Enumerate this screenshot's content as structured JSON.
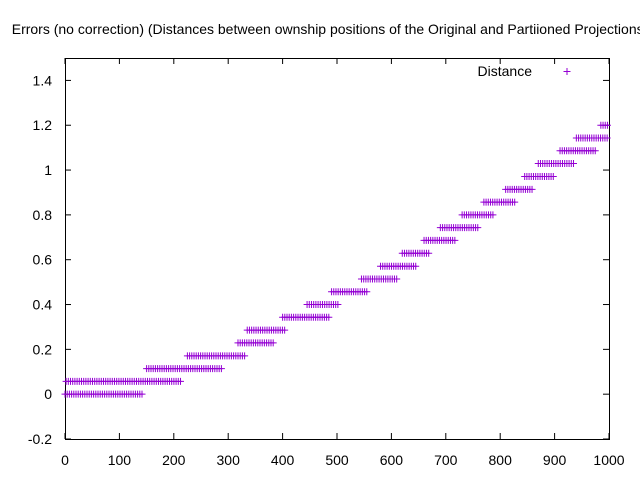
{
  "chart_data": {
    "type": "scatter",
    "title": "Errors (no correction) (Distances between ownship positions of the Original and Partiioned Projections)",
    "xlabel": "",
    "ylabel": "",
    "xlim": [
      0,
      1000
    ],
    "ylim": [
      -0.2,
      1.5
    ],
    "x_ticks": [
      "0",
      "100",
      "200",
      "300",
      "400",
      "500",
      "600",
      "700",
      "800",
      "900",
      "1000"
    ],
    "y_ticks": [
      "-0.2",
      "0",
      "0.2",
      "0.4",
      "0.6",
      "0.8",
      "1",
      "1.2",
      "1.4"
    ],
    "grid": false,
    "legend_position": "top-right",
    "marker": "+",
    "series": [
      {
        "name": "Distance",
        "color": "#9400d3",
        "bands": [
          {
            "y": 0.0,
            "x": [
              0,
              145
            ]
          },
          {
            "y": 0.057,
            "x": [
              2,
              215
            ]
          },
          {
            "y": 0.114,
            "x": [
              150,
              290
            ]
          },
          {
            "y": 0.171,
            "x": [
              225,
              332
            ]
          },
          {
            "y": 0.229,
            "x": [
              318,
              385
            ]
          },
          {
            "y": 0.286,
            "x": [
              335,
              405
            ]
          },
          {
            "y": 0.343,
            "x": [
              400,
              488
            ]
          },
          {
            "y": 0.4,
            "x": [
              445,
              505
            ]
          },
          {
            "y": 0.457,
            "x": [
              490,
              555
            ]
          },
          {
            "y": 0.514,
            "x": [
              545,
              610
            ]
          },
          {
            "y": 0.571,
            "x": [
              580,
              645
            ]
          },
          {
            "y": 0.629,
            "x": [
              620,
              670
            ]
          },
          {
            "y": 0.686,
            "x": [
              660,
              720
            ]
          },
          {
            "y": 0.743,
            "x": [
              690,
              760
            ]
          },
          {
            "y": 0.8,
            "x": [
              730,
              790
            ]
          },
          {
            "y": 0.857,
            "x": [
              770,
              830
            ]
          },
          {
            "y": 0.914,
            "x": [
              810,
              860
            ]
          },
          {
            "y": 0.971,
            "x": [
              845,
              900
            ]
          },
          {
            "y": 1.029,
            "x": [
              870,
              935
            ]
          },
          {
            "y": 1.086,
            "x": [
              910,
              975
            ]
          },
          {
            "y": 1.143,
            "x": [
              940,
              1000
            ]
          },
          {
            "y": 1.2,
            "x": [
              985,
              1000
            ]
          }
        ]
      }
    ]
  }
}
